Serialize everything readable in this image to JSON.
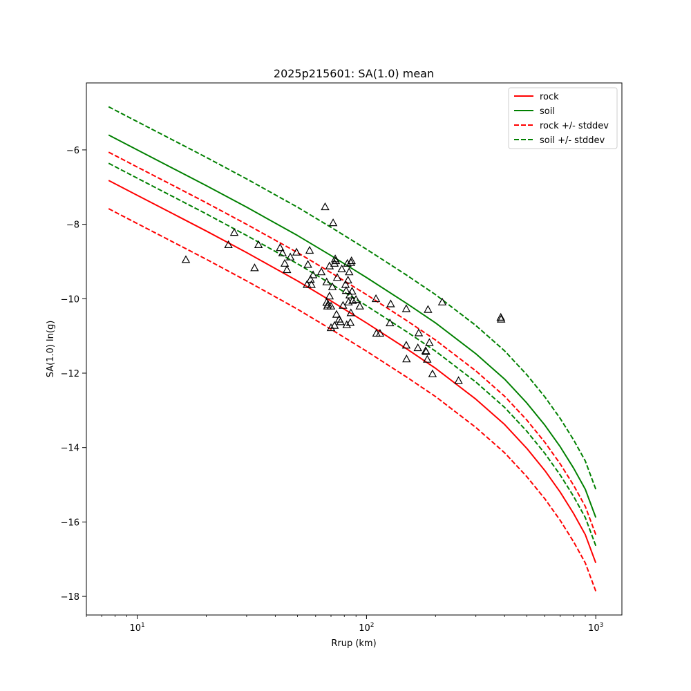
{
  "chart_data": {
    "type": "scatter",
    "title": "2025p215601: SA(1.0) mean",
    "xlabel": "Rrup (km)",
    "ylabel": "SA(1.0) ln(g)",
    "xscale": "log",
    "xlim": [
      6.0,
      1300
    ],
    "ylim": [
      -18.5,
      -4.2
    ],
    "grid": false,
    "legend_position": "top-right",
    "x_ticks": [
      {
        "value": 10,
        "base": "10",
        "exp": "1"
      },
      {
        "value": 100,
        "base": "10",
        "exp": "2"
      },
      {
        "value": 1000,
        "base": "10",
        "exp": "3"
      }
    ],
    "y_ticks": [
      {
        "value": -6,
        "label": "−6"
      },
      {
        "value": -8,
        "label": "−8"
      },
      {
        "value": -10,
        "label": "−10"
      },
      {
        "value": -12,
        "label": "−12"
      },
      {
        "value": -14,
        "label": "−14"
      },
      {
        "value": -16,
        "label": "−16"
      },
      {
        "value": -18,
        "label": "−18"
      }
    ],
    "series": [
      {
        "name": "rock",
        "color": "#ff0000",
        "dash": false,
        "x": [
          7.5,
          10,
          15,
          20,
          30,
          50,
          70,
          100,
          150,
          200,
          300,
          400,
          500,
          600,
          700,
          800,
          900,
          1000
        ],
        "y": [
          -6.82,
          -7.22,
          -7.78,
          -8.18,
          -8.76,
          -9.52,
          -10.06,
          -10.65,
          -11.35,
          -11.87,
          -12.7,
          -13.38,
          -14.02,
          -14.62,
          -15.2,
          -15.77,
          -16.34,
          -17.1
        ]
      },
      {
        "name": "soil",
        "color": "#008000",
        "dash": false,
        "x": [
          7.5,
          10,
          15,
          20,
          30,
          50,
          70,
          100,
          150,
          200,
          300,
          400,
          500,
          600,
          700,
          800,
          900,
          1000
        ],
        "y": [
          -5.6,
          -6.0,
          -6.56,
          -6.96,
          -7.54,
          -8.3,
          -8.84,
          -9.43,
          -10.13,
          -10.65,
          -11.48,
          -12.16,
          -12.8,
          -13.4,
          -13.98,
          -14.55,
          -15.12,
          -15.88
        ]
      },
      {
        "name": "rock +/- stddev",
        "color": "#ff0000",
        "dash": true,
        "x": [
          7.5,
          10,
          15,
          20,
          30,
          50,
          70,
          100,
          150,
          200,
          300,
          400,
          500,
          600,
          700,
          800,
          900,
          1000
        ],
        "y": [
          -6.06,
          -6.46,
          -7.02,
          -7.42,
          -8.0,
          -8.76,
          -9.3,
          -9.89,
          -10.59,
          -11.11,
          -11.94,
          -12.62,
          -13.26,
          -13.86,
          -14.44,
          -15.01,
          -15.58,
          -16.34
        ]
      },
      {
        "name": "",
        "color": "#ff0000",
        "dash": true,
        "x": [
          7.5,
          10,
          15,
          20,
          30,
          50,
          70,
          100,
          150,
          200,
          300,
          400,
          500,
          600,
          700,
          800,
          900,
          1000
        ],
        "y": [
          -7.58,
          -7.98,
          -8.54,
          -8.94,
          -9.52,
          -10.28,
          -10.82,
          -11.41,
          -12.11,
          -12.63,
          -13.46,
          -14.14,
          -14.78,
          -15.38,
          -15.96,
          -16.53,
          -17.1,
          -17.86
        ]
      },
      {
        "name": "soil +/- stddev",
        "color": "#008000",
        "dash": true,
        "x": [
          7.5,
          10,
          15,
          20,
          30,
          50,
          70,
          100,
          150,
          200,
          300,
          400,
          500,
          600,
          700,
          800,
          900,
          1000
        ],
        "y": [
          -4.84,
          -5.24,
          -5.8,
          -6.2,
          -6.78,
          -7.54,
          -8.08,
          -8.67,
          -9.37,
          -9.89,
          -10.72,
          -11.4,
          -12.04,
          -12.64,
          -13.22,
          -13.79,
          -14.36,
          -15.12
        ]
      },
      {
        "name": "",
        "color": "#008000",
        "dash": true,
        "x": [
          7.5,
          10,
          15,
          20,
          30,
          50,
          70,
          100,
          150,
          200,
          300,
          400,
          500,
          600,
          700,
          800,
          900,
          1000
        ],
        "y": [
          -6.36,
          -6.76,
          -7.32,
          -7.72,
          -8.3,
          -9.06,
          -9.6,
          -10.19,
          -10.89,
          -11.41,
          -12.24,
          -12.92,
          -13.56,
          -14.16,
          -14.74,
          -15.31,
          -15.88,
          -16.64
        ]
      }
    ],
    "legend": [
      {
        "label": "rock",
        "color": "#ff0000",
        "dash": false
      },
      {
        "label": "soil",
        "color": "#008000",
        "dash": false
      },
      {
        "label": "rock +/- stddev",
        "color": "#ff0000",
        "dash": true
      },
      {
        "label": "soil +/- stddev",
        "color": "#008000",
        "dash": true
      }
    ],
    "observations": {
      "marker": "triangle",
      "color": "#000000",
      "points": [
        [
          16.3,
          -8.95
        ],
        [
          25.0,
          -8.55
        ],
        [
          26.5,
          -8.22
        ],
        [
          32.5,
          -9.17
        ],
        [
          33.8,
          -8.55
        ],
        [
          42.0,
          -8.63
        ],
        [
          43.0,
          -8.77
        ],
        [
          44.0,
          -9.05
        ],
        [
          45.0,
          -9.22
        ],
        [
          46.5,
          -8.88
        ],
        [
          49.5,
          -8.75
        ],
        [
          55.0,
          -9.62
        ],
        [
          55.5,
          -9.08
        ],
        [
          56.5,
          -8.7
        ],
        [
          57.0,
          -9.48
        ],
        [
          57.5,
          -9.62
        ],
        [
          58.5,
          -9.36
        ],
        [
          63.5,
          -9.28
        ],
        [
          66.0,
          -7.53
        ],
        [
          67.0,
          -9.55
        ],
        [
          67.0,
          -10.1
        ],
        [
          67.5,
          -10.2
        ],
        [
          68.0,
          -10.15
        ],
        [
          69.0,
          -9.93
        ],
        [
          69.0,
          -9.12
        ],
        [
          70.0,
          -10.2
        ],
        [
          70.0,
          -10.78
        ],
        [
          71.0,
          -9.68
        ],
        [
          71.5,
          -7.96
        ],
        [
          72.5,
          -10.72
        ],
        [
          72.5,
          -9.05
        ],
        [
          73.0,
          -8.93
        ],
        [
          73.5,
          -8.98
        ],
        [
          74.0,
          -10.42
        ],
        [
          74.5,
          -9.43
        ],
        [
          76.0,
          -10.55
        ],
        [
          77.0,
          -10.62
        ],
        [
          78.0,
          -9.2
        ],
        [
          79.0,
          -10.18
        ],
        [
          81.0,
          -9.62
        ],
        [
          81.5,
          -9.78
        ],
        [
          82.0,
          -10.7
        ],
        [
          82.5,
          -9.05
        ],
        [
          83.0,
          -9.5
        ],
        [
          83.5,
          -10.09
        ],
        [
          84.0,
          -9.28
        ],
        [
          84.5,
          -9.9
        ],
        [
          85.0,
          -10.64
        ],
        [
          85.5,
          -9.03
        ],
        [
          85.5,
          -10.38
        ],
        [
          86.0,
          -8.98
        ],
        [
          86.5,
          -9.8
        ],
        [
          87.0,
          -10.05
        ],
        [
          90.0,
          -10.02
        ],
        [
          93.5,
          -10.2
        ],
        [
          110.0,
          -10.0
        ],
        [
          110.5,
          -10.93
        ],
        [
          114.5,
          -10.93
        ],
        [
          126.5,
          -10.65
        ],
        [
          127.5,
          -10.14
        ],
        [
          149.0,
          -10.27
        ],
        [
          149.0,
          -11.25
        ],
        [
          149.5,
          -11.62
        ],
        [
          167.5,
          -11.32
        ],
        [
          169.0,
          -10.92
        ],
        [
          181.0,
          -11.4
        ],
        [
          182.0,
          -11.42
        ],
        [
          184.0,
          -11.63
        ],
        [
          185.5,
          -10.29
        ],
        [
          188.0,
          -11.18
        ],
        [
          194.0,
          -12.02
        ],
        [
          214.0,
          -10.09
        ],
        [
          252.0,
          -12.2
        ],
        [
          385.0,
          -10.5
        ],
        [
          386.5,
          -10.55
        ]
      ]
    }
  }
}
